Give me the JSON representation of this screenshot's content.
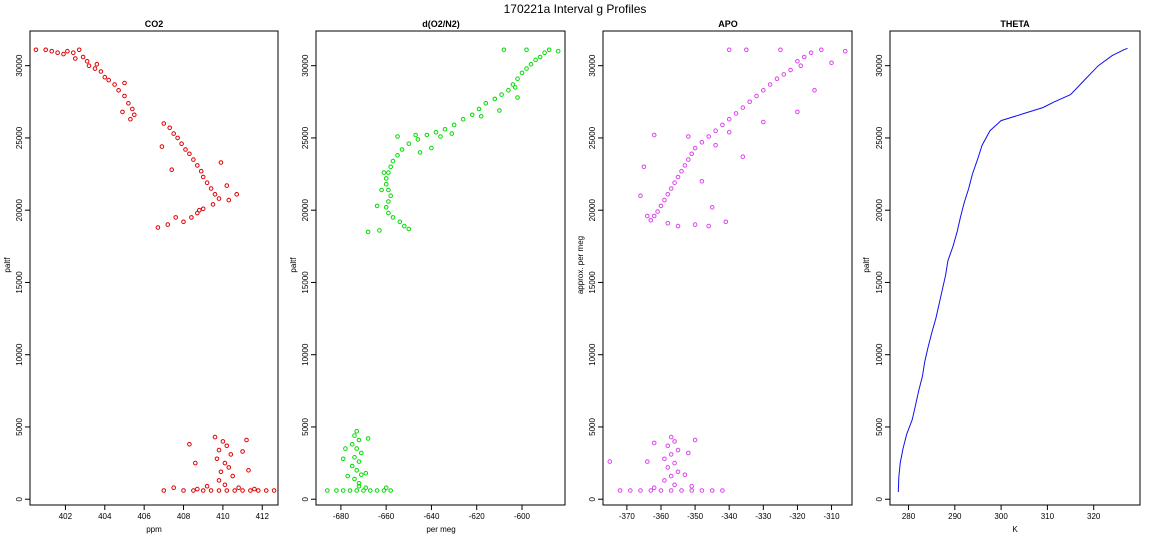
{
  "figure": {
    "title": "170221a   Interval g Profiles"
  },
  "chart_data": [
    {
      "type": "scatter",
      "title": "CO2",
      "xlabel": "ppm",
      "ylabel": "paltf",
      "xlim": [
        400.2,
        412.8
      ],
      "ylim": [
        -400,
        32400
      ],
      "xticks": [
        402,
        404,
        406,
        408,
        410,
        412
      ],
      "yticks": [
        0,
        5000,
        10000,
        15000,
        20000,
        25000,
        30000
      ],
      "color": "#e00000",
      "points": [
        [
          400.5,
          31100
        ],
        [
          401.0,
          31100
        ],
        [
          401.3,
          31000
        ],
        [
          401.6,
          30900
        ],
        [
          401.9,
          30800
        ],
        [
          402.1,
          31000
        ],
        [
          402.4,
          30900
        ],
        [
          402.7,
          31100
        ],
        [
          402.9,
          30600
        ],
        [
          403.1,
          30300
        ],
        [
          403.2,
          30000
        ],
        [
          403.5,
          29800
        ],
        [
          403.8,
          29600
        ],
        [
          404.0,
          29200
        ],
        [
          404.2,
          29000
        ],
        [
          404.5,
          28700
        ],
        [
          404.7,
          28300
        ],
        [
          405.0,
          27900
        ],
        [
          405.2,
          27400
        ],
        [
          405.4,
          27000
        ],
        [
          405.5,
          26600
        ],
        [
          405.3,
          26300
        ],
        [
          404.9,
          26800
        ],
        [
          407.0,
          26000
        ],
        [
          407.3,
          25700
        ],
        [
          407.5,
          25300
        ],
        [
          407.7,
          25000
        ],
        [
          407.9,
          24600
        ],
        [
          408.1,
          24200
        ],
        [
          408.3,
          23900
        ],
        [
          408.5,
          23500
        ],
        [
          408.7,
          23100
        ],
        [
          408.9,
          22700
        ],
        [
          409.0,
          22300
        ],
        [
          409.2,
          21900
        ],
        [
          409.4,
          21500
        ],
        [
          409.6,
          21100
        ],
        [
          409.8,
          20800
        ],
        [
          409.5,
          20400
        ],
        [
          409.0,
          20100
        ],
        [
          408.7,
          19800
        ],
        [
          408.4,
          19500
        ],
        [
          408.0,
          19200
        ],
        [
          407.2,
          19000
        ],
        [
          406.7,
          18800
        ],
        [
          407.6,
          19500
        ],
        [
          408.8,
          20000
        ],
        [
          410.3,
          20700
        ],
        [
          410.7,
          21100
        ],
        [
          406.9,
          24400
        ],
        [
          407.4,
          22800
        ],
        [
          409.9,
          23300
        ],
        [
          410.2,
          21700
        ],
        [
          405.0,
          28800
        ],
        [
          403.6,
          30100
        ],
        [
          402.5,
          30500
        ],
        [
          409.6,
          4300
        ],
        [
          410.0,
          4000
        ],
        [
          410.2,
          3700
        ],
        [
          409.8,
          3400
        ],
        [
          410.4,
          3100
        ],
        [
          409.7,
          2800
        ],
        [
          410.1,
          2500
        ],
        [
          410.3,
          2200
        ],
        [
          409.9,
          1900
        ],
        [
          410.5,
          1600
        ],
        [
          409.8,
          1300
        ],
        [
          410.1,
          1000
        ],
        [
          408.3,
          3800
        ],
        [
          411.2,
          4100
        ],
        [
          411.0,
          3300
        ],
        [
          408.6,
          2500
        ],
        [
          411.3,
          2000
        ],
        [
          407.5,
          800
        ],
        [
          407.0,
          600
        ],
        [
          408.0,
          600
        ],
        [
          408.5,
          600
        ],
        [
          409.0,
          600
        ],
        [
          409.4,
          600
        ],
        [
          409.8,
          600
        ],
        [
          410.2,
          600
        ],
        [
          410.6,
          600
        ],
        [
          411.0,
          600
        ],
        [
          411.4,
          600
        ],
        [
          411.8,
          600
        ],
        [
          412.2,
          600
        ],
        [
          412.6,
          600
        ],
        [
          409.2,
          900
        ],
        [
          410.8,
          800
        ],
        [
          411.6,
          700
        ],
        [
          408.7,
          700
        ]
      ]
    },
    {
      "type": "scatter",
      "title": "d(O2/N2)",
      "xlabel": "per meg",
      "ylabel": "paltf",
      "xlim": [
        -691,
        -581
      ],
      "ylim": [
        -400,
        32400
      ],
      "xticks": [
        -680,
        -660,
        -640,
        -620,
        -600
      ],
      "yticks": [
        0,
        5000,
        10000,
        15000,
        20000,
        25000,
        30000
      ],
      "color": "#00dd00",
      "points": [
        [
          -588,
          31100
        ],
        [
          -590,
          30900
        ],
        [
          -592,
          30600
        ],
        [
          -594,
          30400
        ],
        [
          -596,
          30100
        ],
        [
          -598,
          29800
        ],
        [
          -600,
          29500
        ],
        [
          -602,
          29100
        ],
        [
          -604,
          28700
        ],
        [
          -606,
          28300
        ],
        [
          -609,
          28000
        ],
        [
          -612,
          27700
        ],
        [
          -616,
          27400
        ],
        [
          -619,
          27000
        ],
        [
          -622,
          26600
        ],
        [
          -626,
          26300
        ],
        [
          -630,
          25900
        ],
        [
          -634,
          25600
        ],
        [
          -638,
          25400
        ],
        [
          -642,
          25200
        ],
        [
          -646,
          24900
        ],
        [
          -650,
          24600
        ],
        [
          -653,
          24200
        ],
        [
          -655,
          23800
        ],
        [
          -657,
          23400
        ],
        [
          -658,
          23000
        ],
        [
          -659,
          22600
        ],
        [
          -660,
          22200
        ],
        [
          -660,
          21800
        ],
        [
          -659,
          21400
        ],
        [
          -658,
          21000
        ],
        [
          -659,
          20600
        ],
        [
          -660,
          20200
        ],
        [
          -659,
          19800
        ],
        [
          -657,
          19500
        ],
        [
          -654,
          19200
        ],
        [
          -652,
          18900
        ],
        [
          -650,
          18700
        ],
        [
          -668,
          18500
        ],
        [
          -663,
          18600
        ],
        [
          -647,
          25200
        ],
        [
          -655,
          25100
        ],
        [
          -640,
          24300
        ],
        [
          -645,
          24000
        ],
        [
          -636,
          25100
        ],
        [
          -631,
          25300
        ],
        [
          -610,
          26900
        ],
        [
          -618,
          26500
        ],
        [
          -602,
          27800
        ],
        [
          -584,
          31000
        ],
        [
          -598,
          31100
        ],
        [
          -608,
          31100
        ],
        [
          -603,
          28500
        ],
        [
          -662,
          21400
        ],
        [
          -664,
          20300
        ],
        [
          -661,
          22600
        ],
        [
          -673,
          4700
        ],
        [
          -674,
          4400
        ],
        [
          -672,
          4100
        ],
        [
          -675,
          3800
        ],
        [
          -673,
          3500
        ],
        [
          -671,
          3200
        ],
        [
          -674,
          2900
        ],
        [
          -672,
          2600
        ],
        [
          -675,
          2300
        ],
        [
          -673,
          2000
        ],
        [
          -671,
          1700
        ],
        [
          -674,
          1400
        ],
        [
          -672,
          1100
        ],
        [
          -669,
          800
        ],
        [
          -678,
          3500
        ],
        [
          -679,
          2800
        ],
        [
          -668,
          4200
        ],
        [
          -677,
          1600
        ],
        [
          -669,
          1800
        ],
        [
          -686,
          600
        ],
        [
          -682,
          600
        ],
        [
          -679,
          600
        ],
        [
          -676,
          600
        ],
        [
          -673,
          600
        ],
        [
          -670,
          600
        ],
        [
          -667,
          600
        ],
        [
          -664,
          600
        ],
        [
          -661,
          600
        ],
        [
          -658,
          600
        ],
        [
          -672,
          900
        ],
        [
          -660,
          800
        ]
      ]
    },
    {
      "type": "scatter",
      "title": "APO",
      "xlabel": "",
      "ylabel": "approx. per meg",
      "xlim": [
        -377,
        -304
      ],
      "ylim": [
        -400,
        32400
      ],
      "xticks": [
        -370,
        -360,
        -350,
        -340,
        -330,
        -320,
        -310
      ],
      "yticks": [
        0,
        5000,
        10000,
        15000,
        20000,
        25000,
        30000
      ],
      "color": "#dd44ee",
      "points": [
        [
          -313,
          31100
        ],
        [
          -316,
          30900
        ],
        [
          -318,
          30600
        ],
        [
          -320,
          30300
        ],
        [
          -319,
          30000
        ],
        [
          -322,
          29700
        ],
        [
          -324,
          29400
        ],
        [
          -326,
          29100
        ],
        [
          -328,
          28700
        ],
        [
          -330,
          28300
        ],
        [
          -332,
          27900
        ],
        [
          -334,
          27500
        ],
        [
          -336,
          27100
        ],
        [
          -338,
          26700
        ],
        [
          -340,
          26300
        ],
        [
          -342,
          25900
        ],
        [
          -344,
          25500
        ],
        [
          -346,
          25100
        ],
        [
          -348,
          24700
        ],
        [
          -350,
          24300
        ],
        [
          -351,
          23900
        ],
        [
          -352,
          23500
        ],
        [
          -353,
          23100
        ],
        [
          -354,
          22700
        ],
        [
          -355,
          22300
        ],
        [
          -356,
          21900
        ],
        [
          -357,
          21500
        ],
        [
          -358,
          21100
        ],
        [
          -359,
          20700
        ],
        [
          -360,
          20300
        ],
        [
          -361,
          19900
        ],
        [
          -362,
          19600
        ],
        [
          -363,
          19300
        ],
        [
          -358,
          19100
        ],
        [
          -355,
          18900
        ],
        [
          -350,
          19000
        ],
        [
          -346,
          18900
        ],
        [
          -341,
          19200
        ],
        [
          -362,
          25200
        ],
        [
          -352,
          25100
        ],
        [
          -344,
          24500
        ],
        [
          -340,
          25400
        ],
        [
          -336,
          23700
        ],
        [
          -330,
          26100
        ],
        [
          -320,
          26800
        ],
        [
          -315,
          28300
        ],
        [
          -310,
          30200
        ],
        [
          -306,
          31000
        ],
        [
          -340,
          31100
        ],
        [
          -335,
          31100
        ],
        [
          -325,
          31100
        ],
        [
          -365,
          23000
        ],
        [
          -366,
          21000
        ],
        [
          -364,
          19600
        ],
        [
          -348,
          22000
        ],
        [
          -345,
          20200
        ],
        [
          -357,
          4300
        ],
        [
          -356,
          4000
        ],
        [
          -358,
          3700
        ],
        [
          -355,
          3400
        ],
        [
          -357,
          3100
        ],
        [
          -359,
          2800
        ],
        [
          -356,
          2500
        ],
        [
          -358,
          2200
        ],
        [
          -355,
          1900
        ],
        [
          -357,
          1600
        ],
        [
          -359,
          1300
        ],
        [
          -356,
          1000
        ],
        [
          -362,
          3900
        ],
        [
          -350,
          4100
        ],
        [
          -352,
          3200
        ],
        [
          -364,
          2600
        ],
        [
          -353,
          1700
        ],
        [
          -375,
          2600
        ],
        [
          -372,
          600
        ],
        [
          -369,
          600
        ],
        [
          -366,
          600
        ],
        [
          -363,
          600
        ],
        [
          -360,
          600
        ],
        [
          -357,
          600
        ],
        [
          -354,
          600
        ],
        [
          -351,
          600
        ],
        [
          -348,
          600
        ],
        [
          -345,
          600
        ],
        [
          -342,
          600
        ],
        [
          -362,
          800
        ],
        [
          -351,
          900
        ]
      ]
    },
    {
      "type": "line",
      "title": "THETA",
      "xlabel": "K",
      "ylabel": "paltf",
      "xlim": [
        276,
        330
      ],
      "ylim": [
        -400,
        32400
      ],
      "xticks": [
        280,
        290,
        300,
        310,
        320
      ],
      "yticks": [
        0,
        5000,
        10000,
        15000,
        20000,
        25000,
        30000
      ],
      "color": "#1010ee",
      "points": [
        [
          277.8,
          500
        ],
        [
          277.9,
          1500
        ],
        [
          278.2,
          2500
        ],
        [
          278.8,
          3500
        ],
        [
          279.6,
          4500
        ],
        [
          280.8,
          5500
        ],
        [
          281.5,
          6500
        ],
        [
          282.2,
          7500
        ],
        [
          283.0,
          8500
        ],
        [
          283.5,
          9500
        ],
        [
          284.2,
          10500
        ],
        [
          285.0,
          11500
        ],
        [
          285.9,
          12500
        ],
        [
          286.6,
          13500
        ],
        [
          287.3,
          14500
        ],
        [
          288.0,
          15500
        ],
        [
          288.5,
          16500
        ],
        [
          289.6,
          17500
        ],
        [
          290.5,
          18500
        ],
        [
          291.2,
          19500
        ],
        [
          292.0,
          20500
        ],
        [
          293.0,
          21500
        ],
        [
          293.8,
          22500
        ],
        [
          294.9,
          23500
        ],
        [
          295.9,
          24500
        ],
        [
          297.6,
          25500
        ],
        [
          300.0,
          26200
        ],
        [
          305.0,
          26700
        ],
        [
          309.0,
          27100
        ],
        [
          311.5,
          27500
        ],
        [
          315.0,
          28000
        ],
        [
          318.0,
          29000
        ],
        [
          321.0,
          30000
        ],
        [
          324.0,
          30700
        ],
        [
          326.5,
          31100
        ],
        [
          327.3,
          31200
        ]
      ]
    }
  ]
}
